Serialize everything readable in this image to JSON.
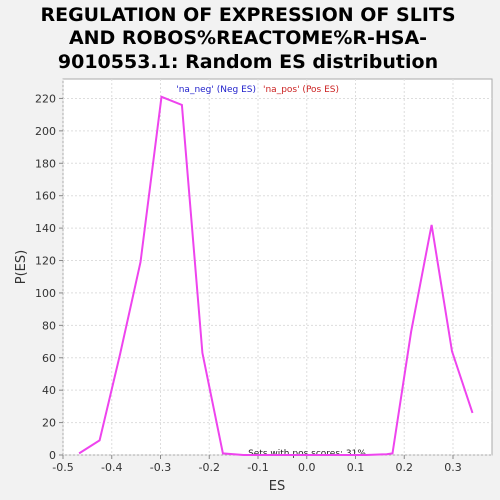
{
  "chart_data": {
    "type": "line",
    "title_lines": [
      "REGULATION OF EXPRESSION OF SLITS",
      "AND ROBOS%REACTOME%R-HSA-",
      "9010553.1: Random ES distribution"
    ],
    "xlabel": "ES",
    "ylabel": "P(ES)",
    "xlim": [
      -0.5,
      0.38
    ],
    "ylim": [
      0,
      232
    ],
    "x_ticks": [
      -0.5,
      -0.4,
      -0.3,
      -0.2,
      -0.1,
      0.0,
      0.1,
      0.2,
      0.3
    ],
    "x_tick_labels": [
      "-0.5",
      "-0.4",
      "-0.3",
      "-0.2",
      "-0.1",
      "0.0",
      "0.1",
      "0.2",
      "0.3"
    ],
    "y_ticks": [
      0,
      20,
      40,
      60,
      80,
      100,
      120,
      140,
      160,
      180,
      200,
      220
    ],
    "y_tick_labels": [
      "0",
      "20",
      "40",
      "60",
      "80",
      "100",
      "120",
      "140",
      "160",
      "180",
      "200",
      "220"
    ],
    "grid": true,
    "legend": {
      "placement": "top-center",
      "neg_label": "'na_neg' (Neg ES)",
      "pos_label": "'na_pos' (Pos ES)",
      "neg_color": "#2222cc",
      "pos_color": "#cc2222"
    },
    "series": [
      {
        "color": "#ee44ee",
        "x": [
          -0.467,
          -0.425,
          -0.383,
          -0.341,
          -0.298,
          -0.256,
          -0.214,
          -0.172,
          -0.13,
          -0.088,
          -0.046,
          -0.004,
          0.038,
          0.08,
          0.122,
          0.164,
          0.176,
          0.214,
          0.256,
          0.298,
          0.34
        ],
        "y": [
          1,
          9,
          62,
          119,
          221,
          216,
          63,
          1,
          0,
          0,
          0,
          0,
          0,
          0,
          0,
          0.5,
          1,
          76,
          142,
          64,
          26
        ]
      }
    ],
    "annotation": "Sets with pos scores: 31%"
  }
}
